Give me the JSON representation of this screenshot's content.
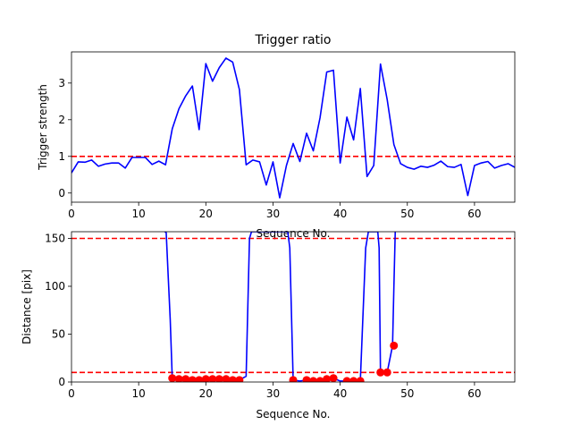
{
  "chart_data": [
    {
      "type": "line",
      "title": "Trigger ratio",
      "xlabel": "Sequence No.",
      "ylabel": "Trigger strength",
      "xlim": [
        0,
        66
      ],
      "ylim": [
        -0.25,
        3.85
      ],
      "xticks": [
        0,
        10,
        20,
        30,
        40,
        50,
        60
      ],
      "yticks": [
        0,
        1,
        2,
        3
      ],
      "grid": false,
      "series": [
        {
          "color": "#0000ff",
          "x": [
            0,
            1,
            2,
            3,
            4,
            5,
            6,
            7,
            8,
            9,
            10,
            11,
            12,
            13,
            14,
            15,
            16,
            17,
            18,
            19,
            20,
            21,
            22,
            23,
            24,
            25,
            26,
            27,
            28,
            29,
            30,
            31,
            32,
            33,
            34,
            35,
            36,
            37,
            38,
            39,
            40,
            41,
            42,
            43,
            44,
            45,
            46,
            47,
            48,
            49,
            50,
            51,
            52,
            53,
            54,
            55,
            56,
            57,
            58,
            59,
            60,
            61,
            62,
            63,
            64,
            65,
            66
          ],
          "values": [
            0.55,
            0.85,
            0.84,
            0.9,
            0.73,
            0.79,
            0.82,
            0.82,
            0.68,
            0.97,
            0.97,
            0.97,
            0.78,
            0.87,
            0.77,
            1.75,
            2.3,
            2.65,
            2.92,
            1.73,
            3.53,
            3.05,
            3.42,
            3.68,
            3.57,
            2.82,
            0.77,
            0.9,
            0.85,
            0.22,
            0.85,
            -0.13,
            0.75,
            1.35,
            0.86,
            1.63,
            1.15,
            2.05,
            3.3,
            3.35,
            0.82,
            2.07,
            1.45,
            2.85,
            0.45,
            0.75,
            3.52,
            2.55,
            1.32,
            0.8,
            0.7,
            0.65,
            0.73,
            0.7,
            0.76,
            0.87,
            0.72,
            0.7,
            0.78,
            -0.07,
            0.75,
            0.82,
            0.86,
            0.68,
            0.75,
            0.8,
            0.7
          ]
        }
      ],
      "reference_lines": [
        {
          "y": 1.0,
          "color": "#ff0000",
          "style": "dashed"
        }
      ]
    },
    {
      "type": "line",
      "title": "",
      "xlabel": "Sequence No.",
      "ylabel": "Distance [pix]",
      "xlim": [
        0,
        66
      ],
      "ylim": [
        0,
        157
      ],
      "xticks": [
        0,
        10,
        20,
        30,
        40,
        50,
        60
      ],
      "yticks": [
        0,
        50,
        100,
        150
      ],
      "grid": false,
      "series": [
        {
          "color": "#0000ff",
          "x": [
            13.9,
            14.1,
            14.4,
            14.7,
            15,
            16,
            17,
            18,
            19,
            20,
            21,
            22,
            23,
            24,
            25,
            26,
            26.5,
            26.8,
            32.2,
            32.5,
            33,
            34,
            35,
            36,
            37,
            38,
            39,
            40,
            41,
            42,
            43,
            43.8,
            44.2,
            45.6,
            45.8,
            46,
            47,
            47.8,
            48,
            48.2
          ],
          "values": [
            157,
            156,
            110,
            65,
            4,
            3,
            3,
            2,
            2,
            3,
            3,
            3,
            3,
            2,
            2,
            6,
            150,
            157,
            157,
            140,
            2,
            1,
            2,
            1,
            1,
            2,
            4,
            1,
            1,
            1,
            1,
            140,
            157,
            157,
            140,
            10,
            10,
            38,
            100,
            157
          ]
        },
        {
          "color": "#ff0000",
          "marker": "circle",
          "x": [
            15,
            16,
            17,
            18,
            19,
            20,
            21,
            22,
            23,
            24,
            25,
            33,
            35,
            36,
            37,
            38,
            39,
            41,
            42,
            43,
            46,
            47,
            48
          ],
          "values": [
            4,
            3,
            3,
            2,
            2,
            3,
            3,
            3,
            3,
            2,
            2,
            2,
            2,
            1,
            1,
            3,
            4,
            1,
            1,
            1,
            10,
            10,
            38
          ]
        }
      ],
      "reference_lines": [
        {
          "y": 150,
          "color": "#ff0000",
          "style": "dashed"
        },
        {
          "y": 10,
          "color": "#ff0000",
          "style": "dashed"
        }
      ]
    }
  ]
}
